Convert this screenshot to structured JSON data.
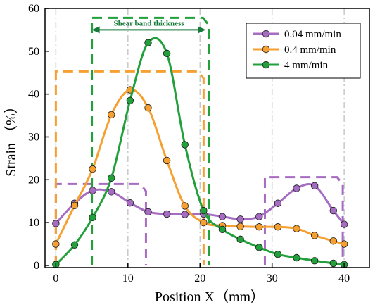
{
  "chart_data": {
    "type": "line",
    "title": "",
    "xlabel": "Position X（mm）",
    "ylabel": "Strain （%）",
    "xlim": [
      -1.5,
      43.5
    ],
    "ylim": [
      -0.5,
      60
    ],
    "xticks": [
      0,
      10,
      20,
      30,
      40
    ],
    "yticks": [
      0,
      10,
      20,
      30,
      40,
      50,
      60
    ],
    "grid_x": [
      0,
      10,
      20,
      30,
      40
    ],
    "legend_position": "top-right",
    "series": [
      {
        "name": "0.04 mm/min",
        "color": "#a56cc1",
        "x": [
          0,
          2.6,
          5.1,
          7.7,
          10.3,
          12.8,
          15.4,
          17.9,
          20.5,
          23.1,
          25.6,
          28.2,
          30.8,
          33.4,
          35.9,
          38.5,
          40
        ],
        "y": [
          9.8,
          14.5,
          17.5,
          17.2,
          14.6,
          12.5,
          12,
          11.9,
          12,
          11.4,
          10.8,
          11.4,
          14.5,
          18,
          18.6,
          12.8,
          9.6
        ]
      },
      {
        "name": "0.4 mm/min",
        "color": "#f5a030",
        "x": [
          0,
          2.6,
          5.1,
          7.7,
          10.3,
          12.8,
          15.4,
          17.9,
          20.5,
          23.1,
          25.6,
          28.2,
          30.8,
          33.4,
          35.9,
          38.5,
          40
        ],
        "y": [
          5,
          14,
          22.5,
          35.2,
          41,
          36.8,
          24.5,
          13.9,
          10,
          9.3,
          9.1,
          9,
          9,
          8.6,
          7,
          5.7,
          5
        ]
      },
      {
        "name": "4 mm/min",
        "color": "#21a03c",
        "x": [
          0,
          2.6,
          5.1,
          7.7,
          10.3,
          12.8,
          15.4,
          17.9,
          20.5,
          23.1,
          25.6,
          28.2,
          30.8,
          33.4,
          35.9,
          38.5,
          40
        ],
        "y": [
          0.2,
          4.8,
          11.2,
          20.4,
          38.5,
          52,
          49.5,
          28.2,
          12.8,
          8.4,
          6.1,
          4.2,
          2.6,
          1.8,
          1.1,
          0.5,
          0.2
        ]
      }
    ],
    "annotations": [
      {
        "text": "Shear band thickness",
        "color": "#167a3a",
        "x_from": 5,
        "x_to": 20.8,
        "y": 55
      }
    ],
    "dashed_boxes": [
      {
        "color": "#a56cc1",
        "x": [
          0,
          12.5
        ],
        "y": [
          0,
          19
        ]
      },
      {
        "color": "#a56cc1",
        "x": [
          29,
          39.8
        ],
        "y": [
          0,
          20.6
        ]
      },
      {
        "color": "#f5a030",
        "x": [
          0,
          20.5
        ],
        "y": [
          0,
          45.3
        ]
      },
      {
        "color": "#21a03c",
        "x": [
          5,
          21.2
        ],
        "y": [
          0,
          57.8
        ]
      }
    ]
  }
}
